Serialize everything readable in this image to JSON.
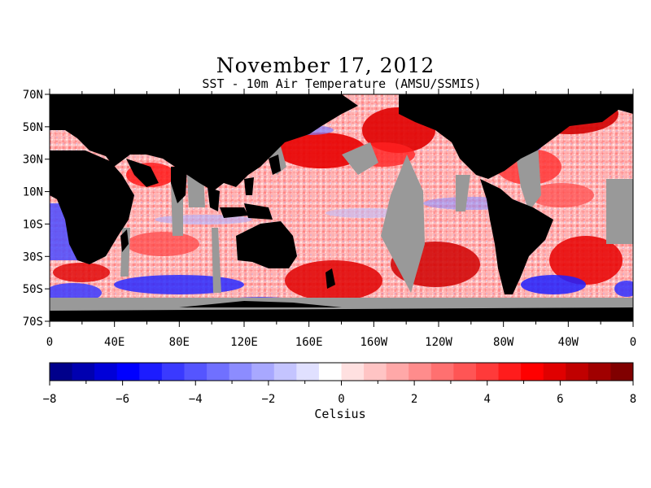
{
  "title": "November 17, 2012",
  "subtitle": "SST - 10m Air Temperature (AMSU/SSMIS)",
  "map": {
    "projection": "cylindrical-equidistant",
    "lon_range": [
      0,
      360
    ],
    "lat_range": [
      -70,
      70
    ],
    "lat_labels": [
      "70N",
      "50N",
      "30N",
      "10N",
      "10S",
      "30S",
      "50S",
      "70S"
    ],
    "lon_labels": [
      "0",
      "40E",
      "80E",
      "120E",
      "160E",
      "160W",
      "120W",
      "80W",
      "40W",
      "0"
    ],
    "colors": {
      "land": "#000000",
      "no_data": "#999999"
    }
  },
  "colorbar": {
    "unit": "Celsius",
    "range": [
      -8,
      8
    ],
    "labels": [
      "−8",
      "−6",
      "−4",
      "−2",
      "0",
      "2",
      "4",
      "6",
      "8"
    ],
    "colors": [
      "#00008b",
      "#0000b0",
      "#0000d8",
      "#0000ff",
      "#1c1cff",
      "#3a3aff",
      "#5555ff",
      "#7070ff",
      "#8c8cff",
      "#a8a8ff",
      "#c4c4ff",
      "#e0e0ff",
      "#ffffff",
      "#ffe0e0",
      "#ffc4c4",
      "#ffa8a8",
      "#ff8c8c",
      "#ff7070",
      "#ff5555",
      "#ff3a3a",
      "#ff1c1c",
      "#ff0000",
      "#e00000",
      "#c00000",
      "#a00000",
      "#800000"
    ]
  }
}
